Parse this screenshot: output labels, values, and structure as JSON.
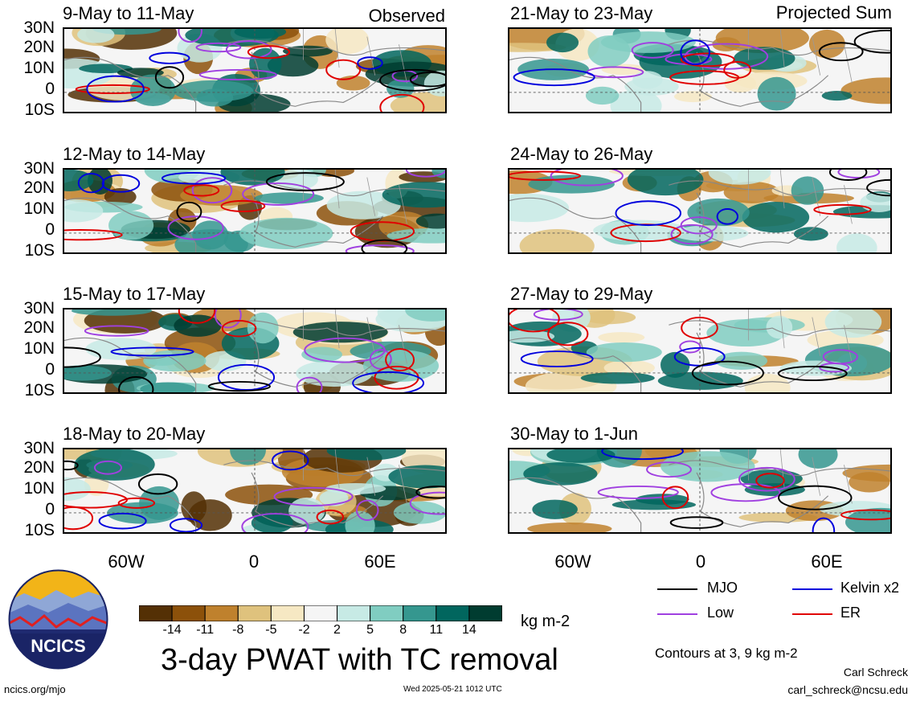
{
  "header": {
    "left_tag": "Observed",
    "right_tag": "Projected Sum"
  },
  "panels_left": [
    {
      "title": "9-May to 11-May"
    },
    {
      "title": "12-May to 14-May"
    },
    {
      "title": "15-May to 17-May"
    },
    {
      "title": "18-May to 20-May"
    }
  ],
  "panels_right": [
    {
      "title": "21-May to 23-May"
    },
    {
      "title": "24-May to 26-May"
    },
    {
      "title": "27-May to 29-May"
    },
    {
      "title": "30-May to 1-Jun"
    }
  ],
  "lat_labels": [
    "30N",
    "20N",
    "10N",
    "0",
    "10S"
  ],
  "lon_labels": [
    "60W",
    "0",
    "60E"
  ],
  "colorbar": {
    "ticks": [
      "-14",
      "-11",
      "-8",
      "-5",
      "-2",
      "2",
      "5",
      "8",
      "11",
      "14"
    ],
    "colors": [
      "#543005",
      "#8c510a",
      "#bf812d",
      "#dfc27d",
      "#f6e8c3",
      "#f5f5f5",
      "#c7eae5",
      "#80cdc1",
      "#35978f",
      "#01665e",
      "#003c30"
    ],
    "units": "kg m-2"
  },
  "title": "3-day PWAT with TC removal",
  "legend": {
    "items": [
      {
        "label": "MJO",
        "color": "#000000"
      },
      {
        "label": "Kelvin x2",
        "color": "#0000dd"
      },
      {
        "label": "Low",
        "color": "#a040e0"
      },
      {
        "label": "ER",
        "color": "#e00000"
      }
    ],
    "contours_note": "Contours at 3, 9 kg m-2"
  },
  "footer": {
    "site": "ncics.org/mjo",
    "timestamp": "Wed 2025-05-21 1012 UTC",
    "author": "Carl Schreck",
    "email": "carl_schreck@ncsu.edu"
  },
  "logo": {
    "text": "NCICS"
  }
}
